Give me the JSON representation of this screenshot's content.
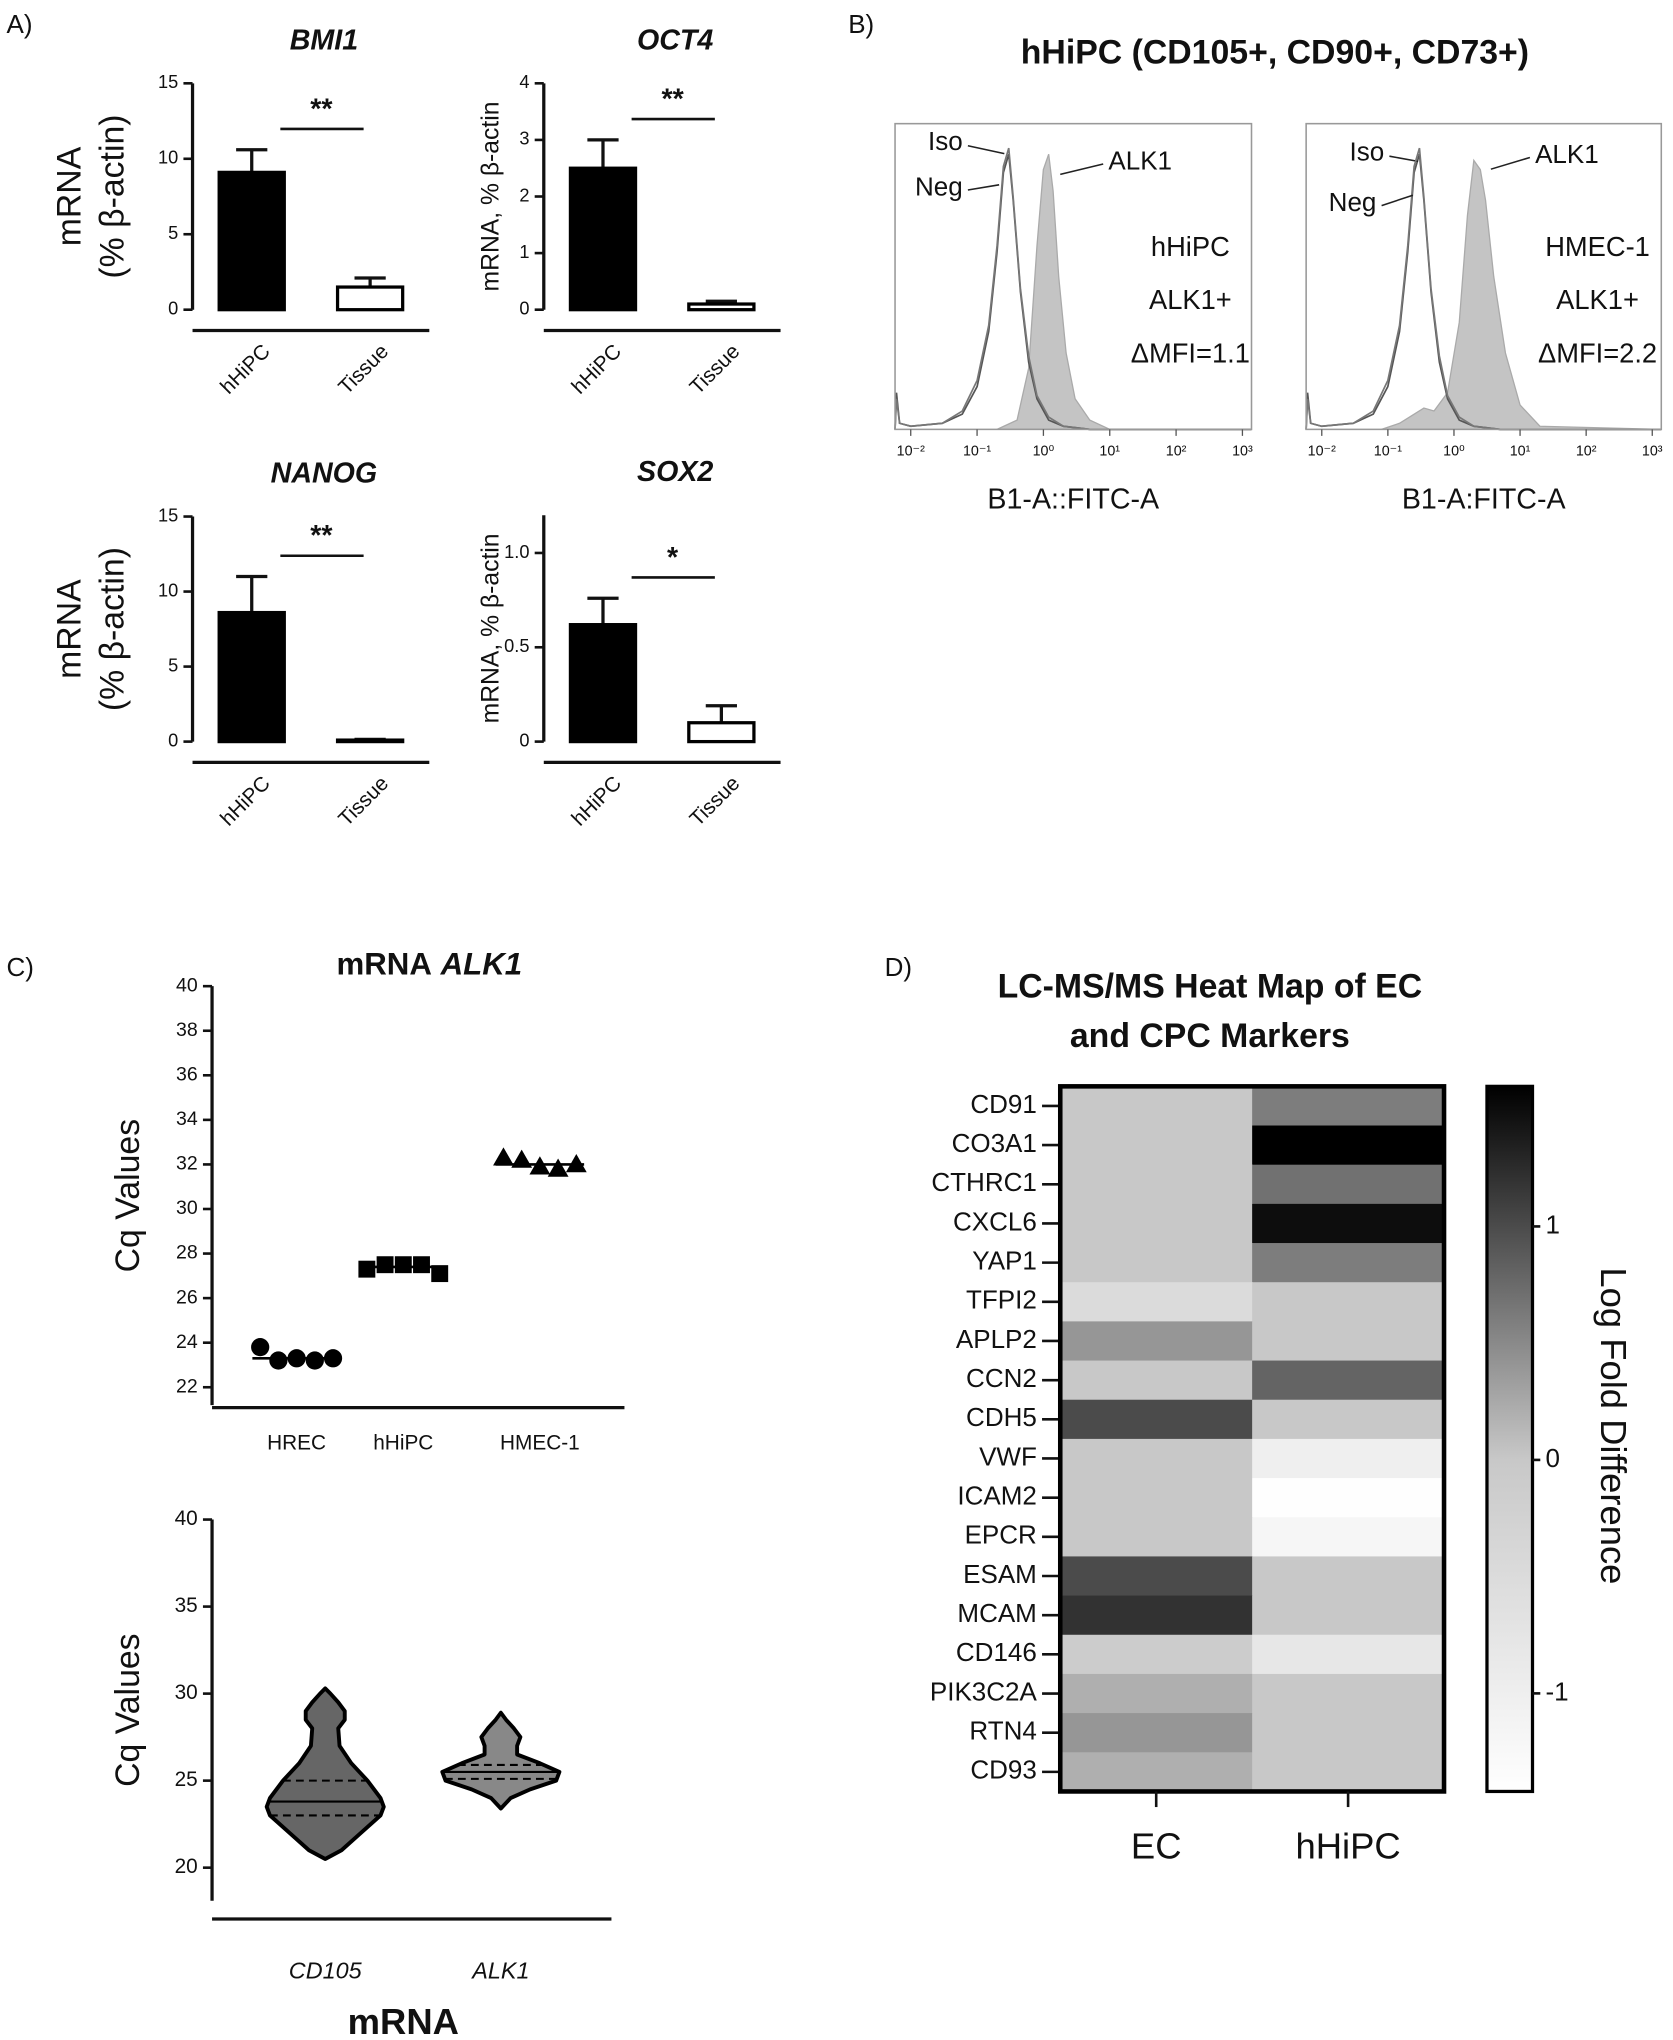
{
  "panels": [
    "A)",
    "B)",
    "C)",
    "D)"
  ],
  "flow_title": "hHiPC (CD105+, CD90+, CD73+)",
  "chart_data": [
    {
      "type": "bar",
      "title": "BMI1",
      "categories": [
        "hHiPC",
        "Tissue"
      ],
      "values": [
        9.1,
        1.5
      ],
      "errors": [
        1.5,
        0.6
      ],
      "colors": [
        "#000000",
        "#ffffff"
      ],
      "ylabel": [
        "mRNA",
        "(% β-actin)"
      ],
      "ylim": [
        0,
        15
      ],
      "yticks": [
        0,
        5,
        10,
        15
      ],
      "annotation": "**"
    },
    {
      "type": "bar",
      "title": "OCT4",
      "categories": [
        "hHiPC",
        "Tissue"
      ],
      "values": [
        2.5,
        0.1
      ],
      "errors": [
        0.5,
        0.05
      ],
      "colors": [
        "#000000",
        "#ffffff"
      ],
      "ylabel": [
        "mRNA, % β-actin"
      ],
      "ylim": [
        0,
        4
      ],
      "yticks": [
        0,
        1,
        2,
        3,
        4
      ],
      "annotation": "**"
    },
    {
      "type": "bar",
      "title": "NANOG",
      "categories": [
        "hHiPC",
        "Tissue"
      ],
      "values": [
        8.6,
        0.1
      ],
      "errors": [
        2.4,
        0.05
      ],
      "colors": [
        "#000000",
        "#ffffff"
      ],
      "ylabel": [
        "mRNA",
        "(% β-actin)"
      ],
      "ylim": [
        0,
        15
      ],
      "yticks": [
        0,
        5,
        10,
        15
      ],
      "annotation": "**"
    },
    {
      "type": "bar",
      "title": "SOX2",
      "categories": [
        "hHiPC",
        "Tissue"
      ],
      "values": [
        0.62,
        0.1
      ],
      "errors": [
        0.14,
        0.09
      ],
      "colors": [
        "#000000",
        "#ffffff"
      ],
      "ylabel": [
        "mRNA, % β-actin"
      ],
      "ylim": [
        0,
        1.2
      ],
      "yticks": [
        0,
        0.5,
        {
          "value": 1,
          "label": "1.0"
        }
      ],
      "annotation": "*"
    },
    {
      "type": "density",
      "xlabel": "B1-A::FITC-A",
      "log_x": true,
      "xlim": [
        0.0058,
        1370
      ],
      "ylim": [
        0,
        100
      ],
      "xticks": [
        {
          "value": 0.01,
          "label": "10⁻²"
        },
        {
          "value": 0.1,
          "label": "10⁻¹"
        },
        {
          "value": 1,
          "label": "10⁰"
        },
        {
          "value": 10,
          "label": "10¹"
        },
        {
          "value": 100,
          "label": "10²"
        },
        {
          "value": 1000,
          "label": "10³"
        }
      ],
      "series": [
        {
          "name": "ALK1",
          "fill": true,
          "color": "#c4c4c4",
          "x": [
            0.2,
            0.4,
            0.6,
            0.8,
            1,
            1.2,
            1.4,
            1.7,
            2.2,
            3,
            5,
            10,
            1370
          ],
          "values": [
            0,
            3,
            20,
            60,
            85,
            90,
            78,
            50,
            25,
            10,
            3,
            0,
            0
          ]
        },
        {
          "name": "Iso",
          "fill": false,
          "color": "#555555",
          "x": [
            0.0058,
            0.0061,
            0.0068,
            0.01,
            0.03,
            0.06,
            0.1,
            0.15,
            0.2,
            0.25,
            0.3,
            0.35,
            0.45,
            0.6,
            0.8,
            1.2,
            2,
            5,
            1370
          ],
          "values": [
            0,
            12,
            2,
            1,
            2,
            5,
            14,
            32,
            58,
            84,
            90,
            75,
            45,
            22,
            10,
            3,
            1,
            0,
            0
          ]
        },
        {
          "name": "Neg",
          "fill": false,
          "color": "#777777",
          "x": [
            0.0058,
            0.0061,
            0.0068,
            0.01,
            0.03,
            0.06,
            0.1,
            0.15,
            0.2,
            0.25,
            0.3,
            0.35,
            0.45,
            0.6,
            0.8,
            1.2,
            2,
            5,
            1370
          ],
          "values": [
            0,
            10,
            2,
            1,
            2,
            6,
            16,
            34,
            60,
            86,
            92,
            76,
            46,
            24,
            11,
            4,
            1,
            0,
            0
          ]
        }
      ],
      "annotations": [
        "hHiPC",
        "ALK1+",
        "ΔMFI=1.1"
      ]
    },
    {
      "type": "density",
      "xlabel": "B1-A:FITC-A",
      "log_x": true,
      "xlim": [
        0.0058,
        1370
      ],
      "ylim": [
        0,
        100
      ],
      "xticks": [
        {
          "value": 0.01,
          "label": "10⁻²"
        },
        {
          "value": 0.1,
          "label": "10⁻¹"
        },
        {
          "value": 1,
          "label": "10⁰"
        },
        {
          "value": 10,
          "label": "10¹"
        },
        {
          "value": 100,
          "label": "10²"
        },
        {
          "value": 1000,
          "label": "10³"
        }
      ],
      "series": [
        {
          "name": "ALK1",
          "fill": true,
          "color": "#c4c4c4",
          "x": [
            0.08,
            0.15,
            0.25,
            0.35,
            0.5,
            0.8,
            1.2,
            1.6,
            2,
            2.5,
            3,
            4,
            6,
            10,
            20,
            1370
          ],
          "values": [
            0,
            2,
            5,
            7,
            6,
            12,
            35,
            70,
            88,
            85,
            75,
            50,
            25,
            8,
            1,
            0
          ]
        },
        {
          "name": "Iso",
          "fill": false,
          "color": "#555555",
          "x": [
            0.0058,
            0.0061,
            0.0068,
            0.01,
            0.03,
            0.06,
            0.1,
            0.15,
            0.2,
            0.25,
            0.3,
            0.35,
            0.45,
            0.6,
            0.8,
            1.2,
            2,
            5,
            1370
          ],
          "values": [
            0,
            12,
            2,
            1,
            2,
            5,
            14,
            32,
            58,
            84,
            90,
            75,
            45,
            22,
            10,
            3,
            1,
            0,
            0
          ]
        },
        {
          "name": "Neg",
          "fill": false,
          "color": "#777777",
          "x": [
            0.0058,
            0.0061,
            0.0068,
            0.01,
            0.03,
            0.06,
            0.1,
            0.15,
            0.2,
            0.25,
            0.3,
            0.35,
            0.45,
            0.6,
            0.8,
            1.2,
            2,
            5,
            1370
          ],
          "values": [
            0,
            10,
            2,
            1,
            2,
            6,
            16,
            34,
            60,
            86,
            92,
            76,
            46,
            24,
            11,
            4,
            1,
            0,
            0
          ]
        }
      ],
      "annotations": [
        "HMEC-1",
        "ALK1+",
        "ΔMFI=2.2"
      ]
    },
    {
      "type": "dotplot",
      "title": [
        "mRNA",
        "ALK1"
      ],
      "categories": [
        "HREC",
        "hHiPC",
        "HMEC-1"
      ],
      "markers": [
        "circle",
        "square",
        "triangle"
      ],
      "values": [
        [
          23.8,
          23.2,
          23.3,
          23.2,
          23.3
        ],
        [
          27.3,
          27.5,
          27.5,
          27.5,
          27.1
        ],
        [
          32.3,
          32.2,
          31.9,
          31.8,
          32.0
        ]
      ],
      "means": [
        23.3,
        27.4,
        32.0
      ],
      "ylabel": "Cq Values",
      "ylim": [
        21.2,
        40
      ],
      "yticks": [
        22,
        24,
        26,
        28,
        30,
        32,
        34,
        36,
        38,
        40
      ]
    },
    {
      "type": "violin",
      "categories": [
        "CD105",
        "ALK1"
      ],
      "xlabel": "mRNA",
      "ylabel": "Cq Values",
      "ylim": [
        18.1,
        40
      ],
      "yticks": [
        20,
        25,
        30,
        35,
        40
      ],
      "violins": [
        {
          "color": "#666666",
          "y": [
            20.5,
            21,
            22,
            23,
            23.5,
            24,
            25,
            26,
            27,
            28,
            28.5,
            29,
            29.5,
            30,
            30.3
          ],
          "width": [
            0,
            0.25,
            0.55,
            0.85,
            0.9,
            0.85,
            0.65,
            0.4,
            0.22,
            0.2,
            0.3,
            0.3,
            0.2,
            0.08,
            0
          ],
          "median": 23.8,
          "q1": 23,
          "q3": 25
        },
        {
          "color": "#888888",
          "y": [
            23.4,
            24,
            24.5,
            25,
            25.5,
            26,
            26.5,
            27,
            27.5,
            28,
            28.5,
            28.9
          ],
          "width": [
            0,
            0.15,
            0.45,
            0.85,
            0.9,
            0.6,
            0.25,
            0.25,
            0.3,
            0.2,
            0.08,
            0
          ],
          "median": 25.5,
          "q1": 25.1,
          "q3": 25.9
        }
      ]
    },
    {
      "type": "heatmap",
      "title": [
        "LC-MS/MS Heat Map of EC",
        "and CPC Markers"
      ],
      "columns": [
        "EC",
        "hHiPC"
      ],
      "rows": [
        "CD91",
        "CO3A1",
        "CTHRC1",
        "CXCL6",
        "YAP1",
        "TFPI2",
        "APLP2",
        "CCN2",
        "CDH5",
        "VWF",
        "ICAM2",
        "EPCR",
        "ESAM",
        "MCAM",
        "CD146",
        "PIK3C2A",
        "RTN4",
        "CD93"
      ],
      "values": [
        [
          0,
          0.6
        ],
        [
          0,
          1.6
        ],
        [
          0,
          0.7
        ],
        [
          0,
          1.5
        ],
        [
          0,
          0.6
        ],
        [
          -0.5,
          0
        ],
        [
          0.4,
          0
        ],
        [
          0,
          0.8
        ],
        [
          1.0,
          0
        ],
        [
          0,
          -1.0
        ],
        [
          0,
          -1.4
        ],
        [
          0,
          -1.2
        ],
        [
          1.0,
          0
        ],
        [
          1.2,
          0
        ],
        [
          -0.1,
          -0.8
        ],
        [
          0.2,
          0
        ],
        [
          0.4,
          0
        ],
        [
          0.2,
          0
        ]
      ],
      "zlim": [
        -1.42,
        1.6
      ],
      "zmid": 0,
      "colors": [
        "#ffffff",
        "#c8c8c8",
        "#000000"
      ],
      "zticks": [
        -1,
        0,
        1
      ],
      "colorbar_label": "Log Fold Difference"
    }
  ]
}
